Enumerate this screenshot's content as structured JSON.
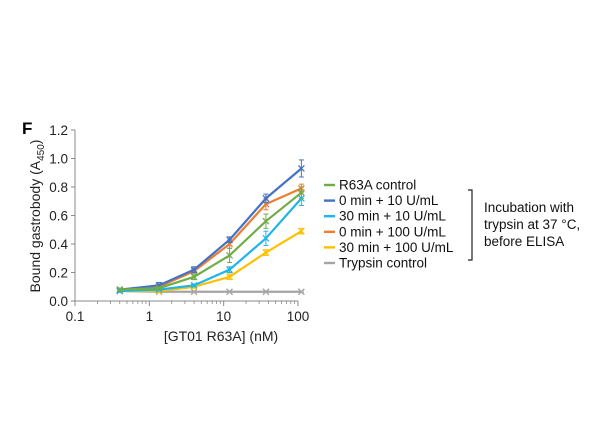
{
  "panel_label": "F",
  "colors": {
    "R63A control": "#70ad47",
    "0 min + 10 U/mL": "#4472c4",
    "30 min + 10 U/mL": "#1fb5ea",
    "0 min + 100 U/mL": "#ed7d31",
    "30 min + 100 U/mL": "#ffc000",
    "Trypsin control": "#a5a5a5"
  },
  "chart_data": {
    "type": "line",
    "xlabel": "[GT01 R63A] (nM)",
    "ylabel": "Bound gastrobody (A",
    "ylabel_sub": "450",
    "ylabel_end": ")",
    "x_scale": "log",
    "xlim": [
      0.1,
      100
    ],
    "ylim": [
      0,
      1.2
    ],
    "x_ticks": [
      "0.1",
      "1",
      "10",
      "100"
    ],
    "y_ticks": [
      "0.0",
      "0.2",
      "0.4",
      "0.6",
      "0.8",
      "1.0",
      "1.2"
    ],
    "grid": false,
    "legend_position": "right",
    "x": [
      0.4,
      1.35,
      4,
      12,
      37,
      111
    ],
    "series": [
      {
        "name": "R63A control",
        "values": [
          0.08,
          0.09,
          0.17,
          0.32,
          0.56,
          0.76
        ],
        "errors": [
          0.01,
          0.01,
          0.02,
          0.05,
          0.05,
          0.04
        ]
      },
      {
        "name": "0 min + 10 U/mL",
        "values": [
          0.08,
          0.11,
          0.22,
          0.43,
          0.72,
          0.93
        ],
        "errors": [
          0.01,
          0.02,
          0.02,
          0.02,
          0.03,
          0.06
        ]
      },
      {
        "name": "30 min + 10 U/mL",
        "values": [
          0.07,
          0.08,
          0.11,
          0.22,
          0.44,
          0.72
        ],
        "errors": [
          0.01,
          0.01,
          0.01,
          0.02,
          0.05,
          0.05
        ]
      },
      {
        "name": "0 min + 100 U/mL",
        "values": [
          0.08,
          0.1,
          0.21,
          0.4,
          0.68,
          0.79
        ],
        "errors": [
          0.01,
          0.01,
          0.02,
          0.03,
          0.04,
          0.03
        ]
      },
      {
        "name": "30 min + 100 U/mL",
        "values": [
          0.07,
          0.07,
          0.1,
          0.17,
          0.34,
          0.49
        ],
        "errors": [
          0.01,
          0.01,
          0.01,
          0.02,
          0.02,
          0.02
        ]
      },
      {
        "name": "Trypsin control",
        "values": [
          0.07,
          0.065,
          0.065,
          0.065,
          0.065,
          0.065
        ],
        "errors": [
          0.005,
          0.005,
          0.005,
          0.005,
          0.005,
          0.005
        ]
      }
    ],
    "annotation_lines": [
      "Incubation with",
      "trypsin at 37 °C,",
      "before ELISA"
    ]
  }
}
